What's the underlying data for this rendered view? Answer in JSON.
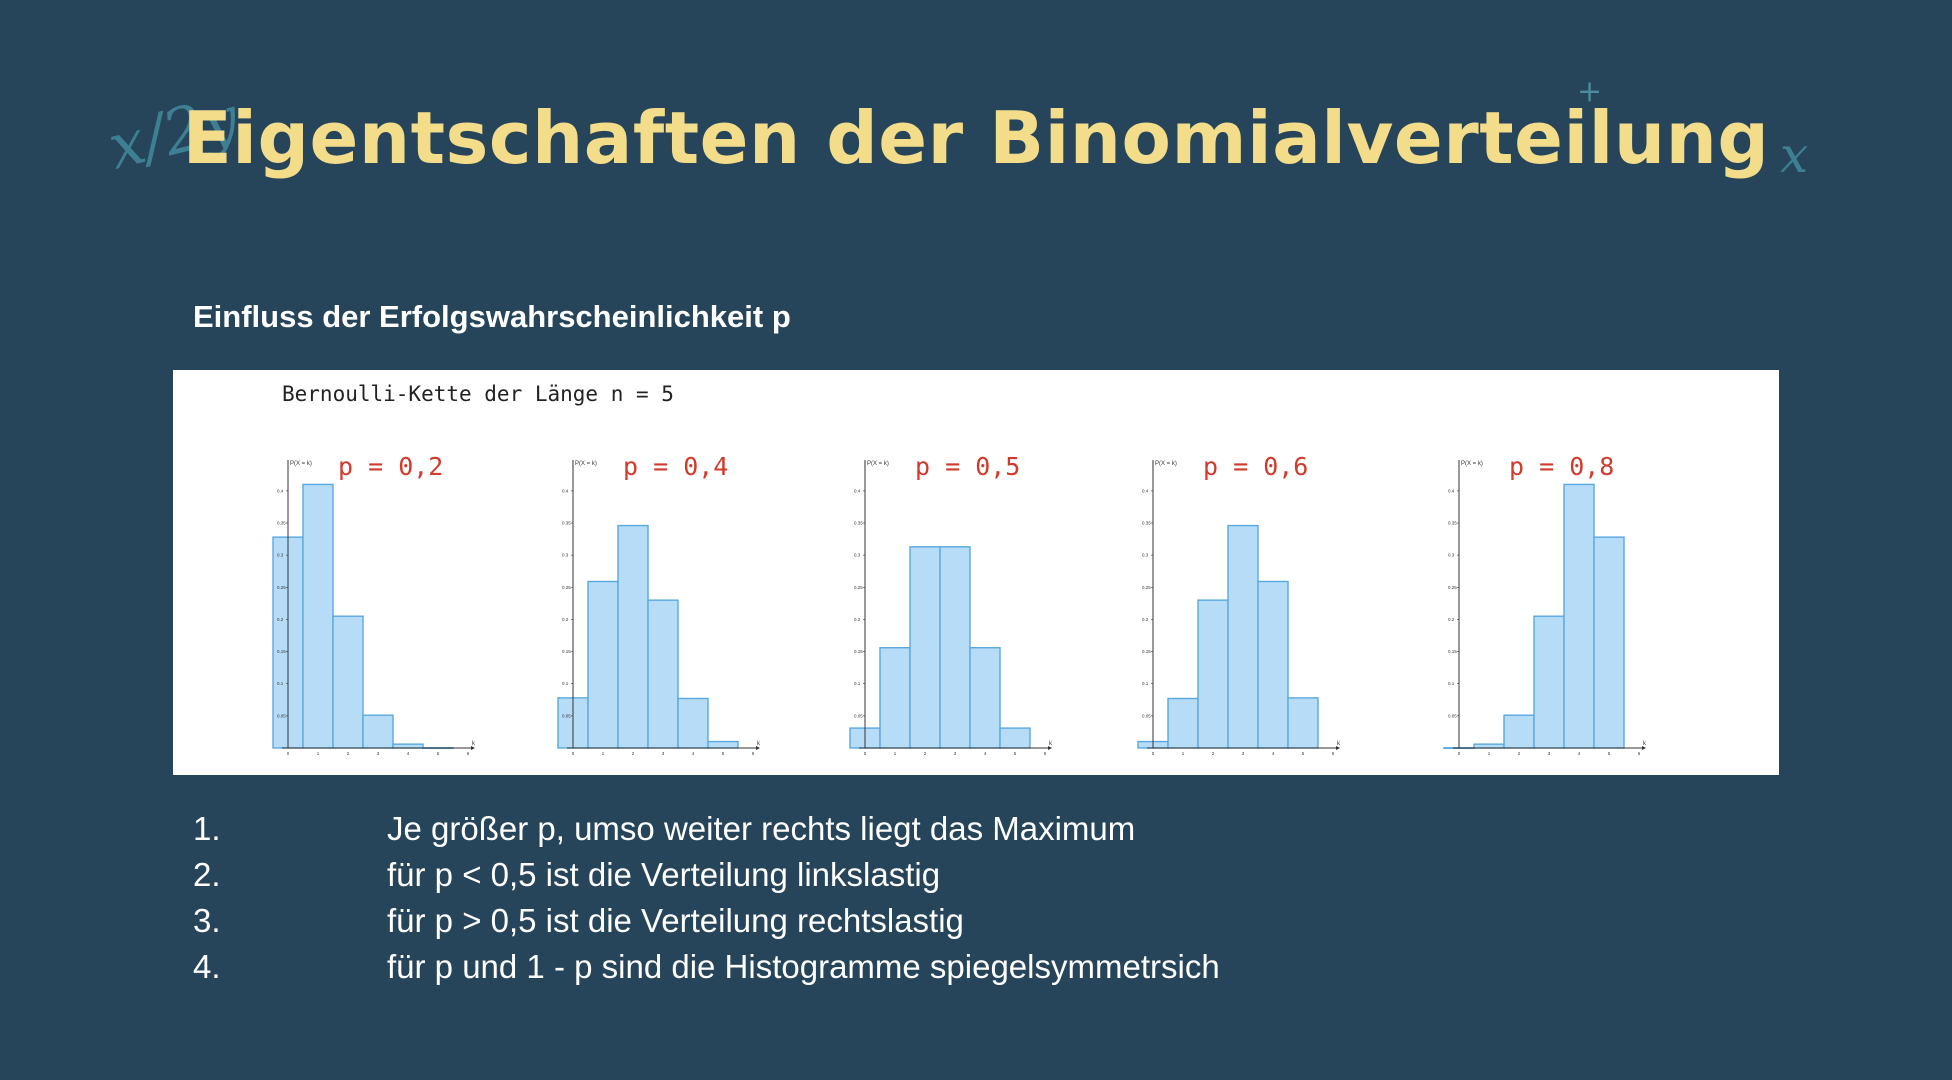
{
  "slide": {
    "title": "Eigentschaften der Binomialverteilung",
    "subtitle": "Einfluss der Erfolgswahrscheinlichkeit p",
    "decorations": [
      "x/2y",
      "x",
      "+"
    ],
    "panel_caption": "Bernoulli-Kette der Länge n = 5",
    "notes": [
      {
        "num": "1.",
        "text": "Je größer p, umso weiter rechts liegt das Maximum"
      },
      {
        "num": "2.",
        "text": "für p < 0,5 ist die Verteilung linkslastig"
      },
      {
        "num": "3.",
        "text": "für p > 0,5 ist die Verteilung rechtslastig"
      },
      {
        "num": "4.",
        "text": "für p und 1 - p sind die Histogramme spiegelsymmetrsich"
      }
    ]
  },
  "colors": {
    "background": "#26455a",
    "title": "#f3dc8a",
    "bar_fill": "#b7dcf7",
    "bar_stroke": "#5aa8e0",
    "p_label": "#d23a2c"
  },
  "chart_data": [
    {
      "type": "bar",
      "title": "p = 0,2",
      "ylabel": "P(X = k)",
      "xlabel": "k",
      "categories": [
        0,
        1,
        2,
        3,
        4,
        5
      ],
      "values": [
        0.328,
        0.41,
        0.205,
        0.051,
        0.006,
        0.0003
      ],
      "xticks": [
        "0",
        "1",
        "2",
        "3",
        "4",
        "5",
        "6"
      ],
      "yticks": [
        "0.05",
        "0.1",
        "0.15",
        "0.2",
        "0.25",
        "0.3",
        "0.35",
        "0.4"
      ],
      "ylim": [
        0,
        0.42
      ]
    },
    {
      "type": "bar",
      "title": "p = 0,4",
      "ylabel": "P(X = k)",
      "xlabel": "k",
      "categories": [
        0,
        1,
        2,
        3,
        4,
        5
      ],
      "values": [
        0.078,
        0.259,
        0.346,
        0.23,
        0.077,
        0.01
      ],
      "xticks": [
        "0",
        "1",
        "2",
        "3",
        "4",
        "5",
        "6"
      ],
      "yticks": [
        "0.05",
        "0.1",
        "0.15",
        "0.2",
        "0.25",
        "0.3",
        "0.35",
        "0.4"
      ],
      "ylim": [
        0,
        0.42
      ]
    },
    {
      "type": "bar",
      "title": "p = 0,5",
      "ylabel": "P(X = k)",
      "xlabel": "k",
      "categories": [
        0,
        1,
        2,
        3,
        4,
        5
      ],
      "values": [
        0.031,
        0.156,
        0.313,
        0.313,
        0.156,
        0.031
      ],
      "xticks": [
        "0",
        "1",
        "2",
        "3",
        "4",
        "5",
        "6"
      ],
      "yticks": [
        "0.05",
        "0.1",
        "0.15",
        "0.2",
        "0.25",
        "0.3",
        "0.35",
        "0.4"
      ],
      "ylim": [
        0,
        0.42
      ]
    },
    {
      "type": "bar",
      "title": "p = 0,6",
      "ylabel": "P(X = k)",
      "xlabel": "k",
      "categories": [
        0,
        1,
        2,
        3,
        4,
        5
      ],
      "values": [
        0.01,
        0.077,
        0.23,
        0.346,
        0.259,
        0.078
      ],
      "xticks": [
        "0",
        "1",
        "2",
        "3",
        "4",
        "5",
        "6"
      ],
      "yticks": [
        "0.05",
        "0.1",
        "0.15",
        "0.2",
        "0.25",
        "0.3",
        "0.35",
        "0.4"
      ],
      "ylim": [
        0,
        0.42
      ]
    },
    {
      "type": "bar",
      "title": "p = 0,8",
      "ylabel": "P(X = k)",
      "xlabel": "k",
      "categories": [
        0,
        1,
        2,
        3,
        4,
        5
      ],
      "values": [
        0.0003,
        0.006,
        0.051,
        0.205,
        0.41,
        0.328
      ],
      "xticks": [
        "0",
        "1",
        "2",
        "3",
        "4",
        "5",
        "6"
      ],
      "yticks": [
        "0.05",
        "0.1",
        "0.15",
        "0.2",
        "0.25",
        "0.3",
        "0.35",
        "0.4"
      ],
      "ylim": [
        0,
        0.42
      ]
    }
  ]
}
